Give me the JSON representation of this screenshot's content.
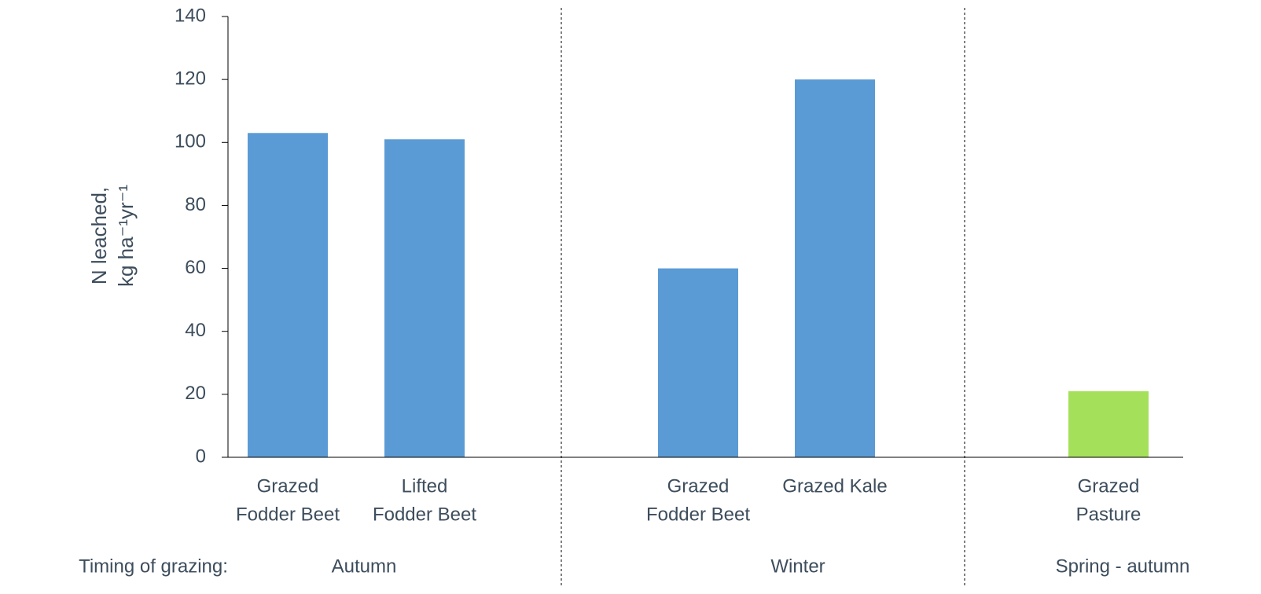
{
  "chart_data": {
    "type": "bar",
    "y_label": [
      "N leached,",
      "kg ha⁻¹yr⁻¹"
    ],
    "categories": [
      [
        "Grazed",
        "Fodder Beet"
      ],
      [
        "Lifted",
        "Fodder Beet"
      ],
      null,
      [
        "Grazed",
        "Fodder Beet"
      ],
      [
        "Grazed Kale"
      ],
      null,
      [
        "Grazed",
        "Pasture"
      ]
    ],
    "values": [
      103,
      101,
      null,
      60,
      120,
      null,
      21
    ],
    "colors": [
      "#5b9bd5",
      "#5b9bd5",
      null,
      "#5b9bd5",
      "#5b9bd5",
      null,
      "#a5e05a"
    ],
    "group_title": "Timing of grazing:",
    "groups": [
      "Autumn",
      "Winter",
      "Spring - autumn"
    ],
    "ylim": [
      0,
      140
    ],
    "yticks": [
      0,
      20,
      40,
      60,
      80,
      100,
      120,
      140
    ]
  }
}
